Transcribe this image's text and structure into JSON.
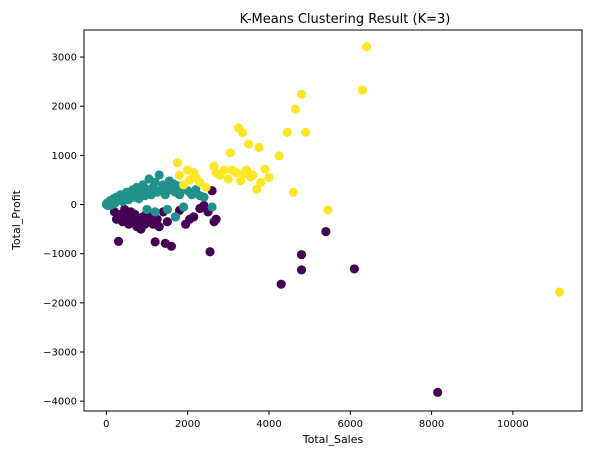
{
  "chart_data": {
    "type": "scatter",
    "title": "K-Means Clustering Result (K=3)",
    "xlabel": "Total_Sales",
    "ylabel": "Total_Profit",
    "xlim": [
      -550,
      11700
    ],
    "ylim": [
      -4200,
      3550
    ],
    "xticks": [
      0,
      2000,
      4000,
      6000,
      8000,
      10000
    ],
    "yticks": [
      -4000,
      -3000,
      -2000,
      -1000,
      0,
      1000,
      2000,
      3000
    ],
    "grid": false,
    "legend": "none",
    "colors": [
      "#440154",
      "#21918c",
      "#fde725"
    ],
    "series": [
      {
        "values": [
          [
            200,
            -150
          ],
          [
            250,
            -300
          ],
          [
            300,
            -750
          ],
          [
            350,
            -200
          ],
          [
            400,
            -350
          ],
          [
            450,
            -100
          ],
          [
            500,
            -250
          ],
          [
            550,
            -400
          ],
          [
            600,
            -150
          ],
          [
            650,
            -300
          ],
          [
            700,
            -200
          ],
          [
            750,
            -450
          ],
          [
            800,
            -350
          ],
          [
            850,
            -500
          ],
          [
            900,
            -250
          ],
          [
            950,
            -400
          ],
          [
            1000,
            -150
          ],
          [
            1050,
            -350
          ],
          [
            1100,
            -200
          ],
          [
            1150,
            -400
          ],
          [
            1200,
            -760
          ],
          [
            1250,
            -300
          ],
          [
            1300,
            -450
          ],
          [
            1400,
            -150
          ],
          [
            1450,
            -790
          ],
          [
            1500,
            -350
          ],
          [
            1600,
            -850
          ],
          [
            1700,
            -250
          ],
          [
            1800,
            -120
          ],
          [
            1950,
            -400
          ],
          [
            2050,
            -300
          ],
          [
            2150,
            -250
          ],
          [
            2300,
            -80
          ],
          [
            2400,
            -20
          ],
          [
            2500,
            -150
          ],
          [
            2550,
            -960
          ],
          [
            2600,
            280
          ],
          [
            2650,
            -350
          ],
          [
            2700,
            -300
          ],
          [
            4300,
            -1620
          ],
          [
            4800,
            -1020
          ],
          [
            4800,
            -1330
          ],
          [
            5400,
            -550
          ],
          [
            6100,
            -1310
          ],
          [
            8150,
            -3820
          ]
        ]
      },
      {
        "values": [
          [
            0,
            0
          ],
          [
            20,
            30
          ],
          [
            40,
            -20
          ],
          [
            60,
            50
          ],
          [
            80,
            10
          ],
          [
            100,
            80
          ],
          [
            120,
            -10
          ],
          [
            150,
            60
          ],
          [
            180,
            120
          ],
          [
            200,
            20
          ],
          [
            250,
            150
          ],
          [
            300,
            90
          ],
          [
            350,
            200
          ],
          [
            400,
            60
          ],
          [
            450,
            180
          ],
          [
            500,
            250
          ],
          [
            550,
            100
          ],
          [
            600,
            220
          ],
          [
            650,
            300
          ],
          [
            700,
            150
          ],
          [
            750,
            350
          ],
          [
            800,
            120
          ],
          [
            850,
            250
          ],
          [
            900,
            400
          ],
          [
            950,
            180
          ],
          [
            1000,
            300
          ],
          [
            1050,
            520
          ],
          [
            1100,
            200
          ],
          [
            1150,
            350
          ],
          [
            1200,
            450
          ],
          [
            1250,
            250
          ],
          [
            1300,
            600
          ],
          [
            1350,
            300
          ],
          [
            1400,
            400
          ],
          [
            1450,
            200
          ],
          [
            1500,
            350
          ],
          [
            1550,
            480
          ],
          [
            1600,
            300
          ],
          [
            1650,
            420
          ],
          [
            1700,
            250
          ],
          [
            1750,
            380
          ],
          [
            1800,
            200
          ],
          [
            1900,
            320
          ],
          [
            2000,
            280
          ],
          [
            2050,
            250
          ],
          [
            2100,
            200
          ],
          [
            2200,
            300
          ],
          [
            2300,
            180
          ],
          [
            2400,
            150
          ],
          [
            1000,
            -100
          ],
          [
            1200,
            -150
          ],
          [
            1500,
            -100
          ],
          [
            1700,
            -250
          ],
          [
            1900,
            -50
          ],
          [
            2600,
            -50
          ]
        ]
      },
      {
        "values": [
          [
            1750,
            850
          ],
          [
            1800,
            600
          ],
          [
            1900,
            400
          ],
          [
            2000,
            700
          ],
          [
            2050,
            500
          ],
          [
            2150,
            650
          ],
          [
            2200,
            550
          ],
          [
            2300,
            450
          ],
          [
            2450,
            350
          ],
          [
            2650,
            780
          ],
          [
            2700,
            650
          ],
          [
            2800,
            600
          ],
          [
            2900,
            700
          ],
          [
            3000,
            520
          ],
          [
            3050,
            1050
          ],
          [
            3100,
            700
          ],
          [
            3200,
            650
          ],
          [
            3250,
            1560
          ],
          [
            3300,
            480
          ],
          [
            3350,
            1460
          ],
          [
            3400,
            630
          ],
          [
            3450,
            700
          ],
          [
            3500,
            1230
          ],
          [
            3550,
            560
          ],
          [
            3600,
            600
          ],
          [
            3700,
            310
          ],
          [
            3750,
            1160
          ],
          [
            3800,
            450
          ],
          [
            3900,
            720
          ],
          [
            4000,
            550
          ],
          [
            4250,
            990
          ],
          [
            4450,
            1470
          ],
          [
            4600,
            250
          ],
          [
            4650,
            1940
          ],
          [
            4800,
            2240
          ],
          [
            4900,
            1470
          ],
          [
            5450,
            -110
          ],
          [
            6300,
            2330
          ],
          [
            6400,
            3210
          ],
          [
            11150,
            -1780
          ]
        ]
      }
    ]
  }
}
